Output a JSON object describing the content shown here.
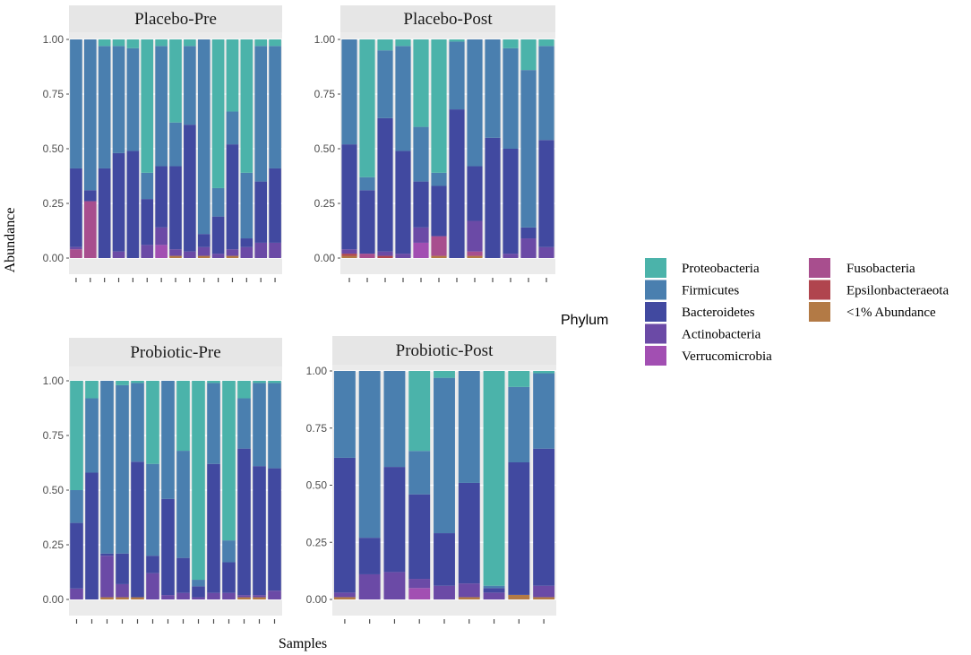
{
  "chart_data": {
    "type": "bar",
    "stacked": true,
    "xlabel": "Samples",
    "ylabel": "Abundance",
    "ylim": [
      0,
      1
    ],
    "yticks": [
      "0.00",
      "0.25",
      "0.50",
      "0.75",
      "1.00"
    ],
    "legend": {
      "title": "Phylum",
      "position": "right",
      "entries": [
        {
          "name": "Proteobacteria",
          "color": "#4BB3AA"
        },
        {
          "name": "Firmicutes",
          "color": "#4A7FAF"
        },
        {
          "name": "Bacteroidetes",
          "color": "#4149A0"
        },
        {
          "name": "Actinobacteria",
          "color": "#6B4AA6"
        },
        {
          "name": "Verrucomicrobia",
          "color": "#A24FB2"
        },
        {
          "name": "Fusobacteria",
          "color": "#A84E8E"
        },
        {
          "name": "Epsilonbacteraeota",
          "color": "#B0454E"
        },
        {
          "name": "<1% Abundance",
          "color": "#B37A45"
        }
      ]
    },
    "panels": [
      {
        "title": "Placebo-Pre",
        "samples": [
          {
            "Fusobacteria": 0.04,
            "Actinobacteria": 0.01,
            "Bacteroidetes": 0.36,
            "Firmicutes": 0.59,
            "Proteobacteria": 0.0
          },
          {
            "Fusobacteria": 0.26,
            "Bacteroidetes": 0.05,
            "Firmicutes": 0.69,
            "Proteobacteria": 0.0
          },
          {
            "Bacteroidetes": 0.41,
            "Firmicutes": 0.56,
            "Proteobacteria": 0.03
          },
          {
            "Actinobacteria": 0.03,
            "Bacteroidetes": 0.45,
            "Firmicutes": 0.49,
            "Proteobacteria": 0.03
          },
          {
            "Bacteroidetes": 0.49,
            "Firmicutes": 0.47,
            "Proteobacteria": 0.04
          },
          {
            "Actinobacteria": 0.06,
            "Bacteroidetes": 0.21,
            "Firmicutes": 0.12,
            "Proteobacteria": 0.61
          },
          {
            "Verrucomicrobia": 0.06,
            "Actinobacteria": 0.08,
            "Bacteroidetes": 0.28,
            "Firmicutes": 0.55,
            "Proteobacteria": 0.03
          },
          {
            "<1% Abundance": 0.01,
            "Actinobacteria": 0.03,
            "Bacteroidetes": 0.38,
            "Firmicutes": 0.2,
            "Proteobacteria": 0.38
          },
          {
            "Actinobacteria": 0.03,
            "Bacteroidetes": 0.58,
            "Firmicutes": 0.36,
            "Proteobacteria": 0.03
          },
          {
            "<1% Abundance": 0.01,
            "Actinobacteria": 0.04,
            "Bacteroidetes": 0.06,
            "Firmicutes": 0.89,
            "Proteobacteria": 0.0
          },
          {
            "Actinobacteria": 0.02,
            "Bacteroidetes": 0.17,
            "Firmicutes": 0.13,
            "Proteobacteria": 0.68
          },
          {
            "<1% Abundance": 0.01,
            "Actinobacteria": 0.03,
            "Bacteroidetes": 0.48,
            "Firmicutes": 0.15,
            "Proteobacteria": 0.33
          },
          {
            "Actinobacteria": 0.05,
            "Bacteroidetes": 0.04,
            "Firmicutes": 0.3,
            "Proteobacteria": 0.61
          },
          {
            "Actinobacteria": 0.07,
            "Bacteroidetes": 0.28,
            "Firmicutes": 0.62,
            "Proteobacteria": 0.03
          },
          {
            "Actinobacteria": 0.07,
            "Bacteroidetes": 0.34,
            "Firmicutes": 0.56,
            "Proteobacteria": 0.03
          }
        ]
      },
      {
        "title": "Placebo-Post",
        "samples": [
          {
            "<1% Abundance": 0.01,
            "Epsilonbacteraeota": 0.01,
            "Actinobacteria": 0.02,
            "Bacteroidetes": 0.48,
            "Firmicutes": 0.48
          },
          {
            "Fusobacteria": 0.02,
            "Bacteroidetes": 0.29,
            "Firmicutes": 0.06,
            "Proteobacteria": 0.63
          },
          {
            "Epsilonbacteraeota": 0.01,
            "Actinobacteria": 0.02,
            "Bacteroidetes": 0.61,
            "Firmicutes": 0.31,
            "Proteobacteria": 0.05
          },
          {
            "Actinobacteria": 0.02,
            "Bacteroidetes": 0.47,
            "Firmicutes": 0.48,
            "Proteobacteria": 0.03
          },
          {
            "Verrucomicrobia": 0.07,
            "Actinobacteria": 0.07,
            "Bacteroidetes": 0.21,
            "Firmicutes": 0.25,
            "Proteobacteria": 0.4
          },
          {
            "<1% Abundance": 0.01,
            "Fusobacteria": 0.09,
            "Bacteroidetes": 0.23,
            "Firmicutes": 0.06,
            "Proteobacteria": 0.61
          },
          {
            "Bacteroidetes": 0.68,
            "Firmicutes": 0.31,
            "Proteobacteria": 0.01
          },
          {
            "<1% Abundance": 0.01,
            "Fusobacteria": 0.02,
            "Actinobacteria": 0.14,
            "Bacteroidetes": 0.25,
            "Firmicutes": 0.58
          },
          {
            "Bacteroidetes": 0.55,
            "Firmicutes": 0.45
          },
          {
            "Actinobacteria": 0.02,
            "Bacteroidetes": 0.48,
            "Firmicutes": 0.46,
            "Proteobacteria": 0.04
          },
          {
            "Actinobacteria": 0.09,
            "Bacteroidetes": 0.05,
            "Firmicutes": 0.72,
            "Proteobacteria": 0.14
          },
          {
            "Actinobacteria": 0.05,
            "Bacteroidetes": 0.49,
            "Firmicutes": 0.43,
            "Proteobacteria": 0.03
          }
        ]
      },
      {
        "title": "Probiotic-Pre",
        "samples": [
          {
            "Actinobacteria": 0.05,
            "Bacteroidetes": 0.3,
            "Firmicutes": 0.15,
            "Proteobacteria": 0.5
          },
          {
            "Bacteroidetes": 0.58,
            "Firmicutes": 0.34,
            "Proteobacteria": 0.08
          },
          {
            "<1% Abundance": 0.01,
            "Actinobacteria": 0.19,
            "Bacteroidetes": 0.01,
            "Firmicutes": 0.79
          },
          {
            "<1% Abundance": 0.01,
            "Actinobacteria": 0.06,
            "Bacteroidetes": 0.14,
            "Firmicutes": 0.77,
            "Proteobacteria": 0.02
          },
          {
            "<1% Abundance": 0.01,
            "Bacteroidetes": 0.62,
            "Firmicutes": 0.36,
            "Proteobacteria": 0.01
          },
          {
            "Actinobacteria": 0.12,
            "Bacteroidetes": 0.08,
            "Firmicutes": 0.42,
            "Proteobacteria": 0.38
          },
          {
            "Actinobacteria": 0.02,
            "Bacteroidetes": 0.44,
            "Firmicutes": 0.54
          },
          {
            "Actinobacteria": 0.03,
            "Bacteroidetes": 0.16,
            "Firmicutes": 0.49,
            "Proteobacteria": 0.32
          },
          {
            "Actinobacteria": 0.01,
            "Bacteroidetes": 0.05,
            "Firmicutes": 0.03,
            "Proteobacteria": 0.91
          },
          {
            "Actinobacteria": 0.03,
            "Bacteroidetes": 0.59,
            "Firmicutes": 0.37,
            "Proteobacteria": 0.01
          },
          {
            "Actinobacteria": 0.03,
            "Bacteroidetes": 0.14,
            "Firmicutes": 0.1,
            "Proteobacteria": 0.73
          },
          {
            "<1% Abundance": 0.01,
            "Actinobacteria": 0.01,
            "Bacteroidetes": 0.67,
            "Firmicutes": 0.23,
            "Proteobacteria": 0.08
          },
          {
            "<1% Abundance": 0.01,
            "Actinobacteria": 0.01,
            "Bacteroidetes": 0.59,
            "Firmicutes": 0.38,
            "Proteobacteria": 0.01
          },
          {
            "Actinobacteria": 0.04,
            "Bacteroidetes": 0.56,
            "Firmicutes": 0.39,
            "Proteobacteria": 0.01
          }
        ]
      },
      {
        "title": "Probiotic-Post",
        "samples": [
          {
            "<1% Abundance": 0.01,
            "Actinobacteria": 0.02,
            "Bacteroidetes": 0.59,
            "Firmicutes": 0.38
          },
          {
            "Actinobacteria": 0.11,
            "Bacteroidetes": 0.16,
            "Firmicutes": 0.73
          },
          {
            "Actinobacteria": 0.12,
            "Bacteroidetes": 0.46,
            "Firmicutes": 0.42
          },
          {
            "Verrucomicrobia": 0.05,
            "Actinobacteria": 0.04,
            "Bacteroidetes": 0.37,
            "Firmicutes": 0.19,
            "Proteobacteria": 0.35
          },
          {
            "Actinobacteria": 0.06,
            "Bacteroidetes": 0.23,
            "Firmicutes": 0.68,
            "Proteobacteria": 0.03
          },
          {
            "<1% Abundance": 0.01,
            "Actinobacteria": 0.06,
            "Bacteroidetes": 0.44,
            "Firmicutes": 0.49
          },
          {
            "Actinobacteria": 0.03,
            "Bacteroidetes": 0.02,
            "Firmicutes": 0.01,
            "Proteobacteria": 0.94
          },
          {
            "<1% Abundance": 0.02,
            "Bacteroidetes": 0.58,
            "Firmicutes": 0.33,
            "Proteobacteria": 0.07
          },
          {
            "<1% Abundance": 0.01,
            "Actinobacteria": 0.05,
            "Bacteroidetes": 0.6,
            "Firmicutes": 0.33,
            "Proteobacteria": 0.01
          }
        ]
      }
    ]
  }
}
